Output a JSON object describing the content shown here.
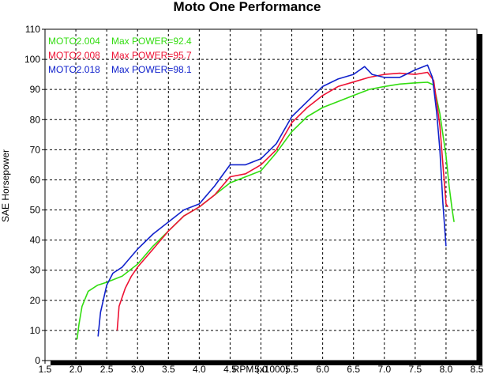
{
  "chart_data": {
    "type": "line",
    "title": "Moto One Performance",
    "xlabel": "RPM (x1000)",
    "ylabel": "SAE Horsepower",
    "xlim": [
      1.5,
      8.5
    ],
    "ylim": [
      0,
      110
    ],
    "x_ticks": [
      "1.5",
      "2.0",
      "2.5",
      "3.0",
      "3.5",
      "4.0",
      "4.5",
      "5.0",
      "5.5",
      "6.0",
      "6.5",
      "7.0",
      "7.5",
      "8.0",
      "8.5"
    ],
    "y_ticks": [
      "0",
      "10",
      "20",
      "30",
      "40",
      "50",
      "60",
      "70",
      "80",
      "90",
      "100",
      "110"
    ],
    "grid": true,
    "legend_position": "top-left",
    "series": [
      {
        "name": "MOTO2.004",
        "max_power_label": "Max POWER=92.4",
        "color": "#33dd11",
        "points": [
          [
            2.02,
            7
          ],
          [
            2.05,
            12
          ],
          [
            2.1,
            18
          ],
          [
            2.2,
            23
          ],
          [
            2.35,
            25
          ],
          [
            2.5,
            26
          ],
          [
            2.75,
            28
          ],
          [
            3.0,
            32
          ],
          [
            3.25,
            38
          ],
          [
            3.5,
            43
          ],
          [
            3.75,
            48
          ],
          [
            4.0,
            51
          ],
          [
            4.25,
            55
          ],
          [
            4.5,
            59
          ],
          [
            4.75,
            61
          ],
          [
            5.0,
            63
          ],
          [
            5.25,
            69
          ],
          [
            5.5,
            76
          ],
          [
            5.75,
            81
          ],
          [
            6.0,
            84
          ],
          [
            6.25,
            86
          ],
          [
            6.5,
            88
          ],
          [
            6.75,
            90
          ],
          [
            7.0,
            91
          ],
          [
            7.25,
            91.8
          ],
          [
            7.5,
            92.2
          ],
          [
            7.7,
            92.4
          ],
          [
            7.8,
            91.5
          ],
          [
            7.9,
            82
          ],
          [
            8.0,
            68
          ],
          [
            8.05,
            58
          ],
          [
            8.1,
            50
          ],
          [
            8.13,
            46
          ]
        ]
      },
      {
        "name": "MOTO2.008",
        "max_power_label": "Max POWER=95.7",
        "color": "#ee1133",
        "points": [
          [
            2.67,
            10
          ],
          [
            2.7,
            18
          ],
          [
            2.8,
            24
          ],
          [
            2.9,
            28
          ],
          [
            3.0,
            31
          ],
          [
            3.25,
            37
          ],
          [
            3.5,
            43
          ],
          [
            3.75,
            48
          ],
          [
            4.0,
            51
          ],
          [
            4.25,
            55
          ],
          [
            4.5,
            61
          ],
          [
            4.75,
            62
          ],
          [
            5.0,
            65
          ],
          [
            5.25,
            70
          ],
          [
            5.5,
            79
          ],
          [
            5.75,
            84
          ],
          [
            6.0,
            88
          ],
          [
            6.25,
            91
          ],
          [
            6.5,
            92.5
          ],
          [
            6.75,
            94
          ],
          [
            7.0,
            95
          ],
          [
            7.25,
            95.4
          ],
          [
            7.5,
            95
          ],
          [
            7.7,
            95.7
          ],
          [
            7.8,
            93
          ],
          [
            7.9,
            78
          ],
          [
            7.95,
            65
          ],
          [
            8.0,
            52
          ],
          [
            8.03,
            51
          ]
        ]
      },
      {
        "name": "MOTO2.018",
        "max_power_label": "Max POWER=98.1",
        "color": "#1122cc",
        "points": [
          [
            2.36,
            8
          ],
          [
            2.4,
            16
          ],
          [
            2.5,
            25
          ],
          [
            2.6,
            29
          ],
          [
            2.75,
            31
          ],
          [
            3.0,
            37
          ],
          [
            3.25,
            42
          ],
          [
            3.5,
            46
          ],
          [
            3.75,
            50
          ],
          [
            4.0,
            52
          ],
          [
            4.25,
            58
          ],
          [
            4.5,
            65
          ],
          [
            4.75,
            65
          ],
          [
            5.0,
            67
          ],
          [
            5.25,
            72
          ],
          [
            5.5,
            81
          ],
          [
            5.75,
            86
          ],
          [
            6.0,
            91
          ],
          [
            6.25,
            93.5
          ],
          [
            6.5,
            95
          ],
          [
            6.68,
            97.6
          ],
          [
            6.8,
            95
          ],
          [
            7.0,
            94
          ],
          [
            7.25,
            94
          ],
          [
            7.5,
            96.5
          ],
          [
            7.7,
            98.1
          ],
          [
            7.78,
            94
          ],
          [
            7.85,
            82
          ],
          [
            7.9,
            70
          ],
          [
            7.95,
            52
          ],
          [
            8.0,
            38
          ]
        ]
      }
    ]
  }
}
